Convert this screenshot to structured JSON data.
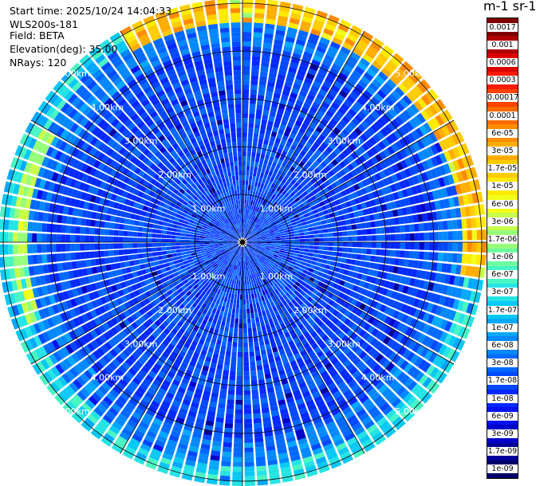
{
  "header": {
    "start_time": "Start time: 2025/10/24 14:04:33",
    "instrument": "WLS200s-181",
    "field": "Field: BETA",
    "elevation": "Elevation(deg): 35.00",
    "nrays": "NRays: 120"
  },
  "colorbar": {
    "unit_label": "m-1 sr-1",
    "labels": [
      "0.0017",
      "0.001",
      "0.0006",
      "0.0003",
      "0.00017",
      "0.0001",
      "6e-05",
      "3e-05",
      "1.7e-05",
      "1e-05",
      "6e-06",
      "3e-06",
      "1.7e-06",
      "1e-06",
      "6e-07",
      "3e-07",
      "1.7e-07",
      "1e-07",
      "6e-08",
      "3e-08",
      "1.7e-08",
      "1e-08",
      "6e-09",
      "3e-09",
      "1.7e-09",
      "1e-09"
    ],
    "colors": [
      "#800000",
      "#b00000",
      "#dc0000",
      "#ff1a00",
      "#ff4400",
      "#ff6a00",
      "#ff8c00",
      "#ffad00",
      "#ffcc00",
      "#ffea00",
      "#f2ff1a",
      "#c8ff4a",
      "#96ff7a",
      "#6effa0",
      "#48f5c4",
      "#24e4e4",
      "#08c8f4",
      "#00a8ff",
      "#0088ff",
      "#0068ff",
      "#0048ff",
      "#0028ff",
      "#0010ee",
      "#0000c8",
      "#00009a",
      "#00006a"
    ]
  },
  "ring_labels": [
    "1.00km",
    "2.00km",
    "3.00km",
    "4.00km",
    "5.00km"
  ],
  "chart_data": {
    "type": "heatmap",
    "projection": "polar PPI",
    "field": "BETA",
    "nrays": 120,
    "elevation_deg": 35.0,
    "range_rings_km": [
      1,
      2,
      3,
      4,
      5
    ],
    "value_scale": "log10",
    "value_range": [
      1e-09,
      0.0017
    ],
    "typical_values": [
      {
        "range_km": "0-4",
        "beta": "1e-08 to 3e-08"
      },
      {
        "range_km": "4.6-5.1 (north/east)",
        "beta": "3e-05 to 1e-04"
      },
      {
        "range_km": "4.5-5.5 (south/west)",
        "beta": "1e-07 to 6e-07"
      }
    ]
  }
}
